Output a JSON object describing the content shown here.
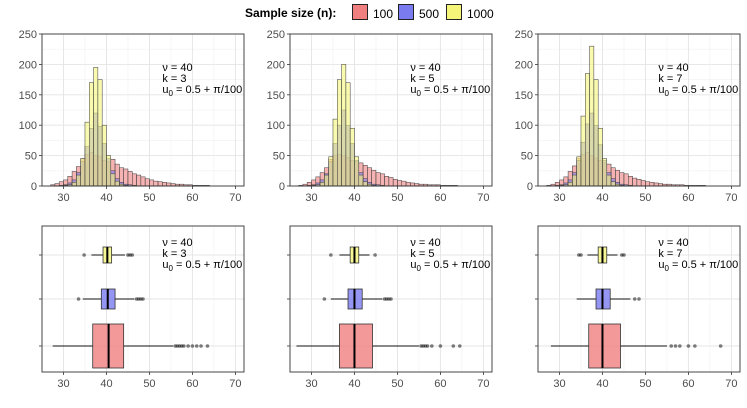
{
  "legend": {
    "title": "Sample size (n):",
    "entries": [
      {
        "label": "100",
        "color": "#f08080"
      },
      {
        "label": "500",
        "color": "#7b7bf0"
      },
      {
        "label": "1000",
        "color": "#f5f57a"
      }
    ]
  },
  "chart_data": [
    {
      "type": "histogram",
      "panel": "histogram-k3",
      "xlim": [
        25,
        72
      ],
      "ylim": [
        0,
        250
      ],
      "xticks": [
        "30",
        "40",
        "50",
        "60",
        "70"
      ],
      "yticks": [
        "0",
        "50",
        "100",
        "150",
        "200",
        "250"
      ],
      "annotation": {
        "nu": "ν = 40",
        "k": "k = 3",
        "u0": "u",
        "u0_sub": "0",
        "u0_rest": " = 0.5 + π/100"
      },
      "bin_start": 27,
      "bin_width": 1,
      "series": [
        {
          "name": "100",
          "color": "#f08080",
          "values": [
            2,
            4,
            7,
            10,
            16,
            24,
            32,
            45,
            52,
            55,
            50,
            48,
            42,
            40,
            44,
            36,
            30,
            28,
            24,
            20,
            18,
            15,
            12,
            10,
            8,
            7,
            6,
            5,
            4,
            3,
            3,
            2,
            2,
            1,
            1,
            1,
            1
          ]
        },
        {
          "name": "500",
          "color": "#7b7bf0",
          "values": [
            0,
            0,
            1,
            2,
            5,
            10,
            22,
            40,
            65,
            95,
            120,
            98,
            70,
            45,
            25,
            12,
            6,
            3,
            2,
            1,
            0,
            0,
            0,
            0,
            0,
            0,
            0,
            0,
            0,
            0,
            0,
            0,
            0,
            0,
            0,
            0,
            0
          ]
        },
        {
          "name": "1000",
          "color": "#f5f57a",
          "values": [
            0,
            0,
            0,
            1,
            2,
            6,
            18,
            45,
            105,
            170,
            195,
            175,
            100,
            50,
            20,
            8,
            3,
            1,
            0,
            0,
            0,
            0,
            0,
            0,
            0,
            0,
            0,
            0,
            0,
            0,
            0,
            0,
            0,
            0,
            0,
            0,
            0
          ]
        }
      ]
    },
    {
      "type": "histogram",
      "panel": "histogram-k5",
      "xlim": [
        25,
        72
      ],
      "ylim": [
        0,
        250
      ],
      "xticks": [
        "30",
        "40",
        "50",
        "60",
        "70"
      ],
      "yticks": [
        "0",
        "50",
        "100",
        "150",
        "200",
        "250"
      ],
      "annotation": {
        "nu": "ν = 40",
        "k": "k = 5",
        "u0": "u",
        "u0_sub": "0",
        "u0_rest": " = 0.5 + π/100"
      },
      "bin_start": 27,
      "bin_width": 1,
      "series": [
        {
          "name": "100",
          "color": "#f08080",
          "values": [
            1,
            3,
            6,
            10,
            15,
            22,
            30,
            44,
            50,
            52,
            50,
            47,
            42,
            40,
            38,
            34,
            30,
            26,
            22,
            20,
            16,
            14,
            11,
            9,
            8,
            6,
            5,
            4,
            3,
            3,
            2,
            2,
            2,
            1,
            1,
            1,
            1
          ]
        },
        {
          "name": "500",
          "color": "#7b7bf0",
          "values": [
            0,
            0,
            1,
            2,
            5,
            10,
            20,
            40,
            70,
            100,
            125,
            100,
            70,
            42,
            22,
            12,
            6,
            3,
            2,
            1,
            0,
            0,
            0,
            0,
            0,
            0,
            0,
            0,
            0,
            0,
            0,
            0,
            0,
            0,
            0,
            0,
            0
          ]
        },
        {
          "name": "1000",
          "color": "#f5f57a",
          "values": [
            0,
            0,
            0,
            1,
            2,
            6,
            18,
            48,
            110,
            175,
            200,
            170,
            95,
            48,
            18,
            7,
            3,
            1,
            0,
            0,
            0,
            0,
            0,
            0,
            0,
            0,
            0,
            0,
            0,
            0,
            0,
            0,
            0,
            0,
            0,
            0,
            0
          ]
        }
      ]
    },
    {
      "type": "histogram",
      "panel": "histogram-k7",
      "xlim": [
        25,
        72
      ],
      "ylim": [
        0,
        250
      ],
      "xticks": [
        "30",
        "40",
        "50",
        "60",
        "70"
      ],
      "yticks": [
        "0",
        "50",
        "100",
        "150",
        "200",
        "250"
      ],
      "annotation": {
        "nu": "ν = 40",
        "k": "k = 7",
        "u0": "u",
        "u0_sub": "0",
        "u0_rest": " = 0.5 + π/100"
      },
      "bin_start": 27,
      "bin_width": 1,
      "series": [
        {
          "name": "100",
          "color": "#f08080",
          "values": [
            1,
            3,
            6,
            10,
            15,
            24,
            33,
            45,
            52,
            55,
            50,
            46,
            42,
            38,
            36,
            30,
            26,
            22,
            20,
            16,
            13,
            11,
            9,
            7,
            6,
            5,
            4,
            3,
            3,
            2,
            2,
            2,
            1,
            1,
            1,
            1,
            1
          ]
        },
        {
          "name": "500",
          "color": "#7b7bf0",
          "values": [
            0,
            0,
            1,
            2,
            5,
            10,
            22,
            42,
            72,
            102,
            120,
            100,
            68,
            42,
            22,
            12,
            6,
            3,
            2,
            1,
            0,
            0,
            0,
            0,
            0,
            0,
            0,
            0,
            0,
            0,
            0,
            0,
            0,
            0,
            0,
            0,
            0
          ]
        },
        {
          "name": "1000",
          "color": "#f5f57a",
          "values": [
            0,
            0,
            0,
            1,
            2,
            6,
            18,
            48,
            115,
            185,
            230,
            175,
            95,
            45,
            18,
            7,
            3,
            1,
            0,
            0,
            0,
            0,
            0,
            0,
            0,
            0,
            0,
            0,
            0,
            0,
            0,
            0,
            0,
            0,
            0,
            0,
            0
          ]
        }
      ]
    },
    {
      "type": "boxplot",
      "panel": "boxplot-k3",
      "xlim": [
        25,
        72
      ],
      "xticks": [
        "30",
        "40",
        "50",
        "60",
        "70"
      ],
      "annotation": {
        "nu": "ν = 40",
        "k": "k = 3",
        "u0": "u",
        "u0_sub": "0",
        "u0_rest": " = 0.5 + π/100"
      },
      "groups": [
        {
          "name": "1000",
          "color": "#f5f57a",
          "whisker_low": 36.5,
          "q1": 39.2,
          "median": 40.2,
          "q3": 41.2,
          "whisker_high": 44.3,
          "outliers": [
            34.8,
            45.0,
            45.5,
            46.0
          ]
        },
        {
          "name": "500",
          "color": "#7b7bf0",
          "whisker_low": 34.5,
          "q1": 38.8,
          "median": 40.3,
          "q3": 42.0,
          "whisker_high": 46.5,
          "outliers": [
            33.5,
            47.0,
            47.5,
            48.0,
            48.5
          ]
        },
        {
          "name": "100",
          "color": "#f08080",
          "whisker_low": 27.5,
          "q1": 36.8,
          "median": 40.5,
          "q3": 44.0,
          "whisker_high": 55.5,
          "outliers": [
            56.0,
            56.5,
            57.0,
            57.5,
            58.0,
            59.0,
            60.0,
            61.0,
            62.0,
            63.5
          ]
        }
      ]
    },
    {
      "type": "boxplot",
      "panel": "boxplot-k5",
      "xlim": [
        25,
        72
      ],
      "xticks": [
        "30",
        "40",
        "50",
        "60",
        "70"
      ],
      "annotation": {
        "nu": "ν = 40",
        "k": "k = 5",
        "u0": "u",
        "u0_sub": "0",
        "u0_rest": " = 0.5 + π/100"
      },
      "groups": [
        {
          "name": "1000",
          "color": "#f5f57a",
          "whisker_low": 36.5,
          "q1": 39.0,
          "median": 40.0,
          "q3": 41.0,
          "whisker_high": 43.5,
          "outliers": [
            34.5,
            44.8
          ]
        },
        {
          "name": "500",
          "color": "#7b7bf0",
          "whisker_low": 34.5,
          "q1": 38.5,
          "median": 40.0,
          "q3": 41.8,
          "whisker_high": 46.5,
          "outliers": [
            33.0,
            47.0,
            47.5,
            48.0,
            48.5
          ]
        },
        {
          "name": "100",
          "color": "#f08080",
          "whisker_low": 26.5,
          "q1": 36.5,
          "median": 40.0,
          "q3": 44.2,
          "whisker_high": 55.0,
          "outliers": [
            55.5,
            56.0,
            56.5,
            57.0,
            58.0,
            60.0,
            63.0,
            64.5
          ]
        }
      ]
    },
    {
      "type": "boxplot",
      "panel": "boxplot-k7",
      "xlim": [
        25,
        72
      ],
      "xticks": [
        "30",
        "40",
        "50",
        "60",
        "70"
      ],
      "annotation": {
        "nu": "ν = 40",
        "k": "k = 7",
        "u0": "u",
        "u0_sub": "0",
        "u0_rest": " = 0.5 + π/100"
      },
      "groups": [
        {
          "name": "1000",
          "color": "#f5f57a",
          "whisker_low": 36.5,
          "q1": 39.0,
          "median": 40.0,
          "q3": 41.0,
          "whisker_high": 43.5,
          "outliers": [
            34.5,
            35.0,
            44.5,
            45.0
          ]
        },
        {
          "name": "500",
          "color": "#7b7bf0",
          "whisker_low": 34.0,
          "q1": 38.5,
          "median": 40.0,
          "q3": 41.8,
          "whisker_high": 46.5,
          "outliers": [
            47.5,
            48.5
          ]
        },
        {
          "name": "100",
          "color": "#f08080",
          "whisker_low": 28.0,
          "q1": 36.8,
          "median": 40.0,
          "q3": 44.2,
          "whisker_high": 55.0,
          "outliers": [
            56.0,
            57.0,
            58.0,
            60.0,
            61.5,
            67.5
          ]
        }
      ]
    }
  ]
}
